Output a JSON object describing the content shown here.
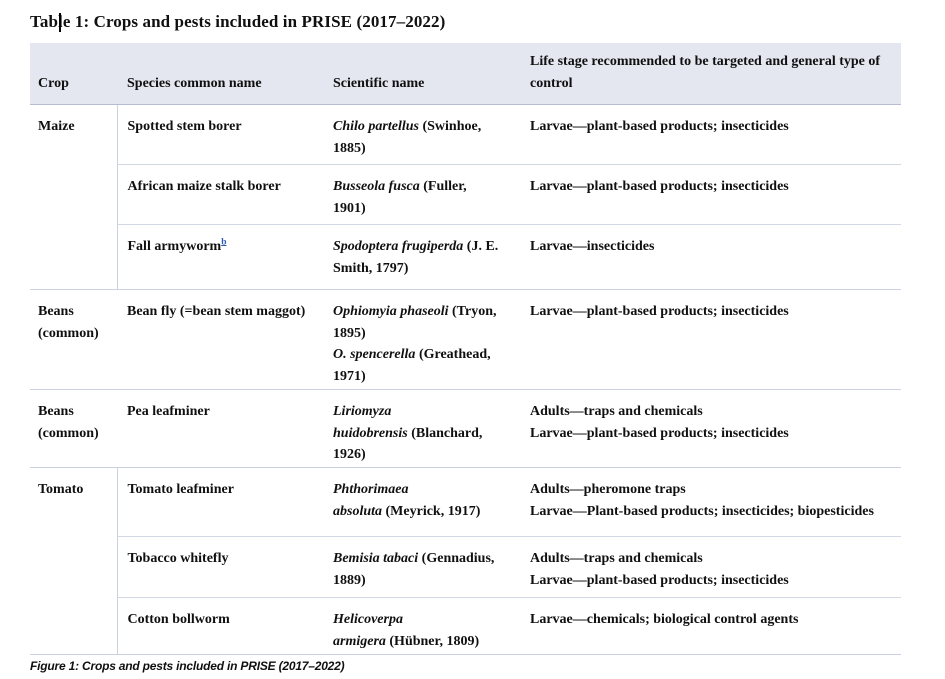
{
  "title": "Table 1: Crops and pests included in PRISE (2017–2022)",
  "caption": "Figure 1: Crops and pests included in PRISE (2017–2022)",
  "colors": {
    "header_bg": "#e4e7f0",
    "header_border": "#b6bdd2",
    "row_border": "#ccd3e0",
    "footnote_link": "#2a5db0",
    "text": "#101010"
  },
  "table": {
    "headers": [
      "Crop",
      "Species common name",
      "Scientific name",
      "Life stage recommended to be targeted and general type of control"
    ],
    "groups": [
      {
        "crop": "Maize",
        "rows": [
          {
            "species": "Spotted stem borer",
            "scientific_lines": [
              [
                {
                  "t": "Chilo partellus",
                  "i": true
                },
                {
                  "t": " (Swinhoe,",
                  "i": false
                }
              ],
              [
                {
                  "t": "1885)",
                  "i": false
                }
              ]
            ],
            "control": [
              "Larvae—plant-based products; insecticides"
            ]
          },
          {
            "species": "African maize stalk borer",
            "scientific_lines": [
              [
                {
                  "t": "Busseola fusca",
                  "i": true
                },
                {
                  "t": " (Fuller,",
                  "i": false
                }
              ],
              [
                {
                  "t": "1901)",
                  "i": false
                }
              ]
            ],
            "control": [
              "Larvae—plant-based products; insecticides"
            ]
          },
          {
            "species": "Fall armyworm",
            "footnote": "b",
            "scientific_lines": [
              [
                {
                  "t": "Spodoptera frugiperda",
                  "i": true
                },
                {
                  "t": " (J. E.",
                  "i": false
                }
              ],
              [
                {
                  "t": "Smith, 1797)",
                  "i": false
                }
              ]
            ],
            "control": [
              "Larvae—insecticides"
            ]
          }
        ]
      },
      {
        "crop": "Beans (common)",
        "rows": [
          {
            "species": "Bean fly (=bean stem maggot)",
            "scientific_lines": [
              [
                {
                  "t": "Ophiomyia phaseoli",
                  "i": true
                },
                {
                  "t": " (Tryon,",
                  "i": false
                }
              ],
              [
                {
                  "t": "1895)",
                  "i": false
                }
              ],
              [
                {
                  "t": "O. spencerella",
                  "i": true
                },
                {
                  "t": " (Greathead,",
                  "i": false
                }
              ],
              [
                {
                  "t": "1971)",
                  "i": false
                }
              ]
            ],
            "control": [
              "Larvae—plant-based products; insecticides"
            ]
          }
        ]
      },
      {
        "crop": "Beans (common)",
        "rows": [
          {
            "species": "Pea leafminer",
            "scientific_lines": [
              [
                {
                  "t": "Liriomyza",
                  "i": true
                }
              ],
              [
                {
                  "t": "huidobrensis",
                  "i": true
                },
                {
                  "t": " (Blanchard,",
                  "i": false
                }
              ],
              [
                {
                  "t": "1926)",
                  "i": false
                }
              ]
            ],
            "control": [
              "Adults—traps and chemicals",
              "Larvae—plant-based products; insecticides"
            ]
          }
        ]
      },
      {
        "crop": "Tomato",
        "rows": [
          {
            "species": "Tomato leafminer",
            "scientific_lines": [
              [
                {
                  "t": "Phthorimaea",
                  "i": true
                }
              ],
              [
                {
                  "t": "absoluta",
                  "i": true
                },
                {
                  "t": " (Meyrick, 1917)",
                  "i": false
                }
              ]
            ],
            "control": [
              "Adults—pheromone traps",
              "Larvae—Plant-based products; insecticides; biopesticides"
            ]
          },
          {
            "species": "Tobacco whitefly",
            "scientific_lines": [
              [
                {
                  "t": "Bemisia tabaci",
                  "i": true
                },
                {
                  "t": " (Gennadius,",
                  "i": false
                }
              ],
              [
                {
                  "t": "1889)",
                  "i": false
                }
              ]
            ],
            "control": [
              "Adults—traps and chemicals",
              "Larvae—plant-based products; insecticides"
            ]
          },
          {
            "species": "Cotton bollworm",
            "scientific_lines": [
              [
                {
                  "t": "Helicoverpa",
                  "i": true
                }
              ],
              [
                {
                  "t": "armigera",
                  "i": true
                },
                {
                  "t": " (Hübner, 1809)",
                  "i": false
                }
              ]
            ],
            "control": [
              "Larvae—chemicals; biological control agents"
            ]
          }
        ]
      }
    ]
  }
}
